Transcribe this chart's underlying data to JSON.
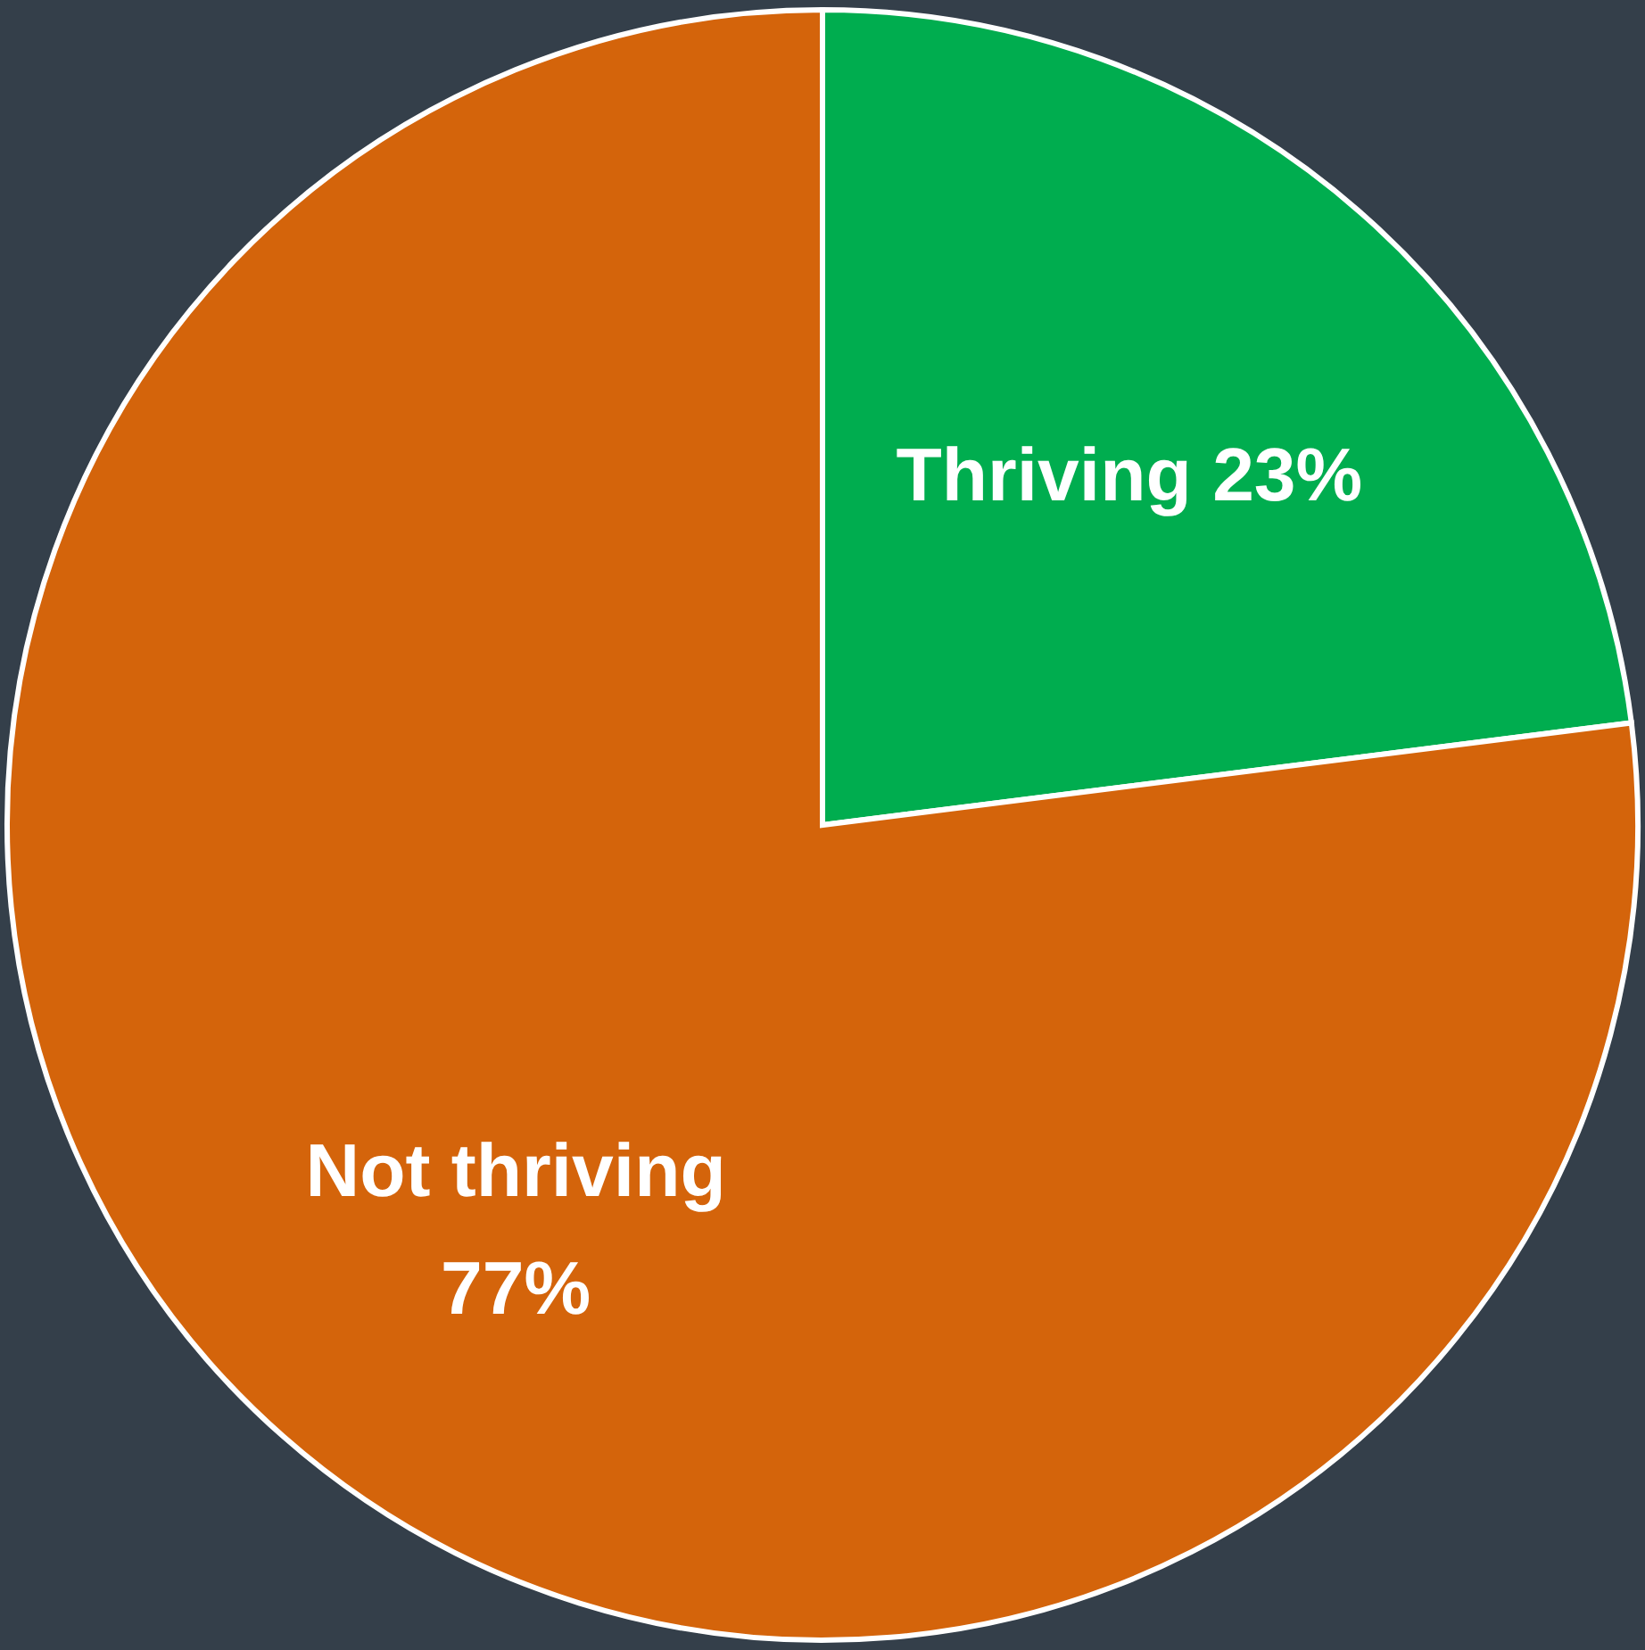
{
  "chart_data": {
    "type": "pie",
    "categories": [
      "Thriving",
      "Not thriving"
    ],
    "values": [
      23,
      77
    ],
    "colors": [
      "#00ad4f",
      "#d4640b"
    ],
    "value_labels": [
      "23%",
      "77%"
    ]
  }
}
